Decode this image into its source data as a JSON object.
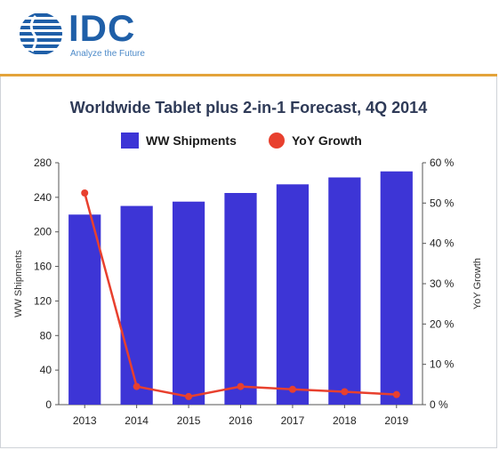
{
  "brand": {
    "name": "IDC",
    "tagline": "Analyze the Future",
    "colors": {
      "primary": "#1f5fa8",
      "accent": "#e3a33a"
    }
  },
  "chart_data": {
    "type": "bar",
    "title": "Worldwide Tablet plus 2-in-1 Forecast, 4Q 2014",
    "categories": [
      "2013",
      "2014",
      "2015",
      "2016",
      "2017",
      "2018",
      "2019"
    ],
    "series": [
      {
        "name": "WW Shipments",
        "type": "bar",
        "axis": "left",
        "color": "#3d35d6",
        "values": [
          220,
          230,
          235,
          245,
          255,
          263,
          270
        ]
      },
      {
        "name": "YoY Growth",
        "type": "line",
        "axis": "right",
        "color": "#e8402e",
        "unit": "%",
        "values": [
          52.5,
          4.5,
          2.0,
          4.5,
          3.8,
          3.2,
          2.5
        ]
      }
    ],
    "ylabel": "WW Shipments",
    "ylim": [
      0,
      280
    ],
    "yticks": [
      0,
      40,
      80,
      120,
      160,
      200,
      240,
      280
    ],
    "y2label": "YoY Growth",
    "y2lim": [
      0,
      60
    ],
    "y2ticks": [
      "0 %",
      "10 %",
      "20 %",
      "30 %",
      "40 %",
      "50 %",
      "60 %"
    ],
    "grid": false,
    "legend": "top"
  }
}
